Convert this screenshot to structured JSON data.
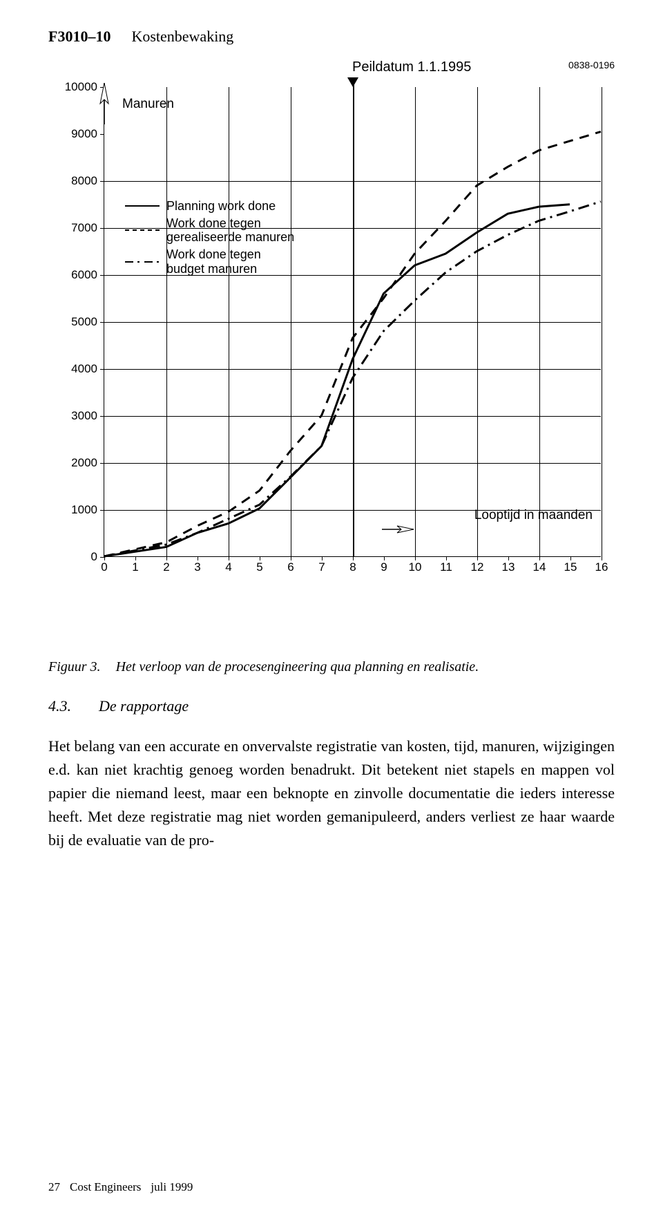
{
  "header": {
    "code": "F3010–10",
    "title": "Kostenbewaking"
  },
  "chart": {
    "type": "line",
    "title": "Peildatum 1.1.1995",
    "ref_code": "0838-0196",
    "y_label": "Manuren",
    "x_label": "Looptijd in maanden",
    "x_ticks": [
      "0",
      "1",
      "2",
      "3",
      "4",
      "5",
      "6",
      "7",
      "8",
      "9",
      "10",
      "11",
      "12",
      "13",
      "14",
      "15",
      "16"
    ],
    "y_ticks": [
      "0",
      "1000",
      "2000",
      "3000",
      "4000",
      "5000",
      "6000",
      "7000",
      "8000",
      "9000",
      "10000"
    ],
    "xlim": [
      0,
      16
    ],
    "ylim": [
      0,
      10000
    ],
    "x_grid_at": [
      2,
      4,
      6,
      8,
      10,
      12,
      14,
      16
    ],
    "y_grid_at": [
      1000,
      2000,
      3000,
      4000,
      5000,
      6000,
      7000,
      8000
    ],
    "peildatum_x": 8,
    "line_width": 3,
    "legend": [
      {
        "label": "Planning work done",
        "style": "solid"
      },
      {
        "label": "Work done tegen gerealiseerde manuren",
        "style": "dashed"
      },
      {
        "label": "Work done tegen budget manuren",
        "style": "dashdot"
      }
    ],
    "series": {
      "solid": [
        [
          0,
          0
        ],
        [
          2,
          200
        ],
        [
          3,
          500
        ],
        [
          4,
          700
        ],
        [
          5,
          1020
        ],
        [
          6,
          1680
        ],
        [
          7,
          2350
        ],
        [
          8,
          4200
        ],
        [
          9,
          5600
        ],
        [
          10,
          6200
        ],
        [
          11,
          6450
        ],
        [
          12,
          6900
        ],
        [
          13,
          7300
        ],
        [
          14,
          7450
        ],
        [
          15,
          7500
        ]
      ],
      "dashed": [
        [
          0,
          0
        ],
        [
          2,
          300
        ],
        [
          3,
          650
        ],
        [
          4,
          950
        ],
        [
          5,
          1400
        ],
        [
          6,
          2250
        ],
        [
          7,
          3000
        ],
        [
          8,
          4650
        ],
        [
          9,
          5500
        ],
        [
          10,
          6450
        ],
        [
          11,
          7150
        ],
        [
          12,
          7900
        ],
        [
          13,
          8300
        ],
        [
          14,
          8650
        ],
        [
          15,
          8850
        ],
        [
          16,
          9050
        ]
      ],
      "dashdot": [
        [
          0,
          0
        ],
        [
          2,
          250
        ],
        [
          3,
          500
        ],
        [
          4,
          800
        ],
        [
          5,
          1100
        ],
        [
          6,
          1700
        ],
        [
          7,
          2350
        ],
        [
          8,
          3800
        ],
        [
          9,
          4800
        ],
        [
          10,
          5450
        ],
        [
          11,
          6050
        ],
        [
          12,
          6500
        ],
        [
          13,
          6850
        ],
        [
          14,
          7150
        ],
        [
          15,
          7350
        ],
        [
          16,
          7560
        ]
      ]
    },
    "colors": {
      "background": "#ffffff",
      "grid": "#000000",
      "line": "#000000"
    }
  },
  "caption": {
    "ref": "Figuur 3.",
    "text": "Het verloop van de procesengineering qua planning en realisatie."
  },
  "section": {
    "num": "4.3.",
    "title": "De rapportage"
  },
  "body": "Het belang van een accurate en onvervalste registratie van kosten, tijd, manuren, wijzigingen e.d. kan niet krachtig genoeg worden benadrukt. Dit betekent niet stapels en mappen vol papier die niemand leest, maar een beknopte en zinvolle documentatie die ieders interesse heeft. Met deze registratie mag niet worden gemanipuleerd, anders verliest ze haar waarde bij de evaluatie van de pro-",
  "footer": {
    "page": "27",
    "publisher": "Cost Engineers",
    "date": "juli 1999"
  }
}
